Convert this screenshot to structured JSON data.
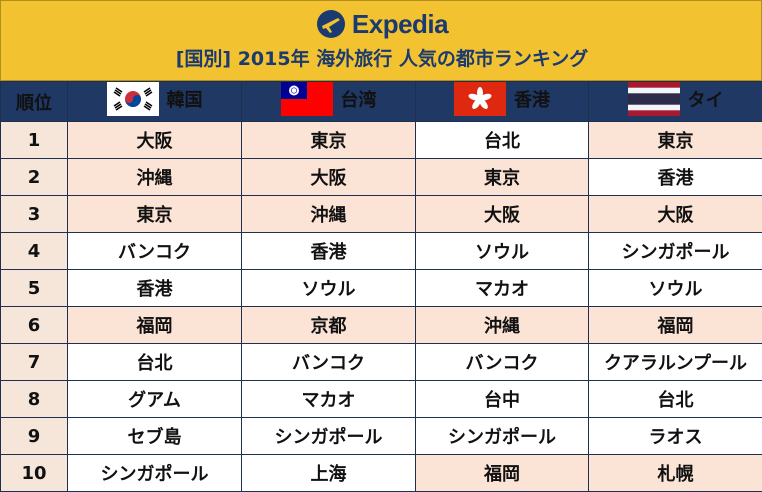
{
  "brand": {
    "name": "Expedia"
  },
  "title": "[国別] 2015年 海外旅行 人気の都市ランキング",
  "colors": {
    "header_bg": "#f2c230",
    "table_header_bg": "#1f3864",
    "highlight_bg": "#fbe3d6",
    "highlight_text": "#c00000"
  },
  "columns": {
    "rank_label": "順位",
    "countries": [
      {
        "name": "韓国",
        "flag_icon": "korea-flag-icon"
      },
      {
        "name": "台湾",
        "flag_icon": "taiwan-flag-icon"
      },
      {
        "name": "香港",
        "flag_icon": "hongkong-flag-icon"
      },
      {
        "name": "タイ",
        "flag_icon": "thailand-flag-icon"
      }
    ]
  },
  "rows": [
    {
      "rank": "1",
      "cells": [
        {
          "city": "大阪",
          "hl": true
        },
        {
          "city": "東京",
          "hl": true
        },
        {
          "city": "台北",
          "hl": false
        },
        {
          "city": "東京",
          "hl": true
        }
      ]
    },
    {
      "rank": "2",
      "cells": [
        {
          "city": "沖縄",
          "hl": true
        },
        {
          "city": "大阪",
          "hl": true
        },
        {
          "city": "東京",
          "hl": true
        },
        {
          "city": "香港",
          "hl": false
        }
      ]
    },
    {
      "rank": "3",
      "cells": [
        {
          "city": "東京",
          "hl": true
        },
        {
          "city": "沖縄",
          "hl": true
        },
        {
          "city": "大阪",
          "hl": true
        },
        {
          "city": "大阪",
          "hl": true
        }
      ]
    },
    {
      "rank": "4",
      "cells": [
        {
          "city": "バンコク",
          "hl": false
        },
        {
          "city": "香港",
          "hl": false
        },
        {
          "city": "ソウル",
          "hl": false
        },
        {
          "city": "シンガポール",
          "hl": false
        }
      ]
    },
    {
      "rank": "5",
      "cells": [
        {
          "city": "香港",
          "hl": false
        },
        {
          "city": "ソウル",
          "hl": false
        },
        {
          "city": "マカオ",
          "hl": false
        },
        {
          "city": "ソウル",
          "hl": false
        }
      ]
    },
    {
      "rank": "6",
      "cells": [
        {
          "city": "福岡",
          "hl": true
        },
        {
          "city": "京都",
          "hl": true
        },
        {
          "city": "沖縄",
          "hl": true
        },
        {
          "city": "福岡",
          "hl": true
        }
      ]
    },
    {
      "rank": "7",
      "cells": [
        {
          "city": "台北",
          "hl": false
        },
        {
          "city": "バンコク",
          "hl": false
        },
        {
          "city": "バンコク",
          "hl": false
        },
        {
          "city": "クアラルンプール",
          "hl": false
        }
      ]
    },
    {
      "rank": "8",
      "cells": [
        {
          "city": "グアム",
          "hl": false
        },
        {
          "city": "マカオ",
          "hl": false
        },
        {
          "city": "台中",
          "hl": false
        },
        {
          "city": "台北",
          "hl": false
        }
      ]
    },
    {
      "rank": "9",
      "cells": [
        {
          "city": "セブ島",
          "hl": false
        },
        {
          "city": "シンガポール",
          "hl": false
        },
        {
          "city": "シンガポール",
          "hl": false
        },
        {
          "city": "ラオス",
          "hl": false
        }
      ]
    },
    {
      "rank": "10",
      "cells": [
        {
          "city": "シンガポール",
          "hl": false
        },
        {
          "city": "上海",
          "hl": false
        },
        {
          "city": "福岡",
          "hl": true
        },
        {
          "city": "札幌",
          "hl": true
        }
      ]
    }
  ]
}
